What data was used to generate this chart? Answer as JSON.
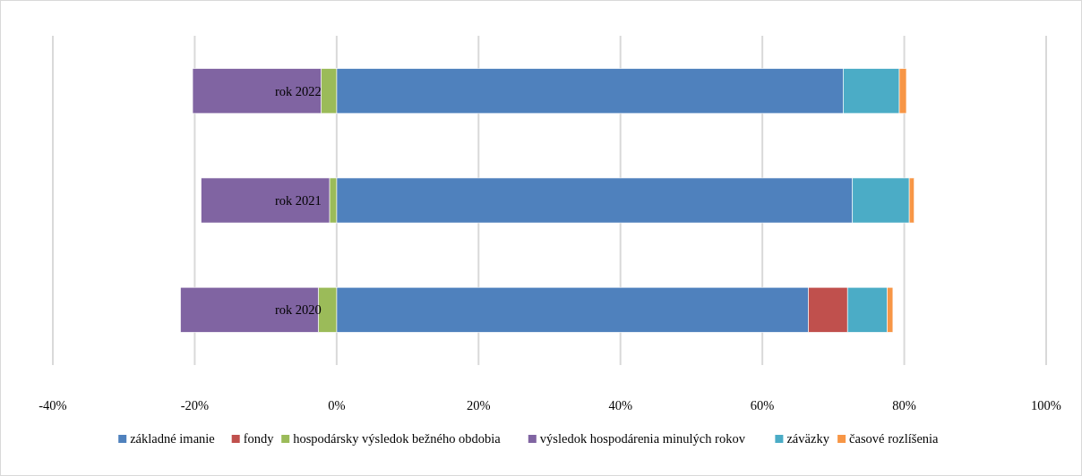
{
  "chart_data": {
    "type": "bar",
    "orientation": "horizontal",
    "stacked": true,
    "categories": [
      "rok 2022",
      "rok 2021",
      "rok 2020"
    ],
    "series": [
      {
        "name": "základné imanie",
        "color": "#4f81bd",
        "values": [
          71.4,
          72.7,
          66.5
        ]
      },
      {
        "name": "fondy",
        "color": "#c0504d",
        "values": [
          0,
          0,
          5.5
        ]
      },
      {
        "name": "hospodársky výsledok bežného obdobia",
        "color": "#9bbb59",
        "values": [
          -2.2,
          -1.0,
          -2.6
        ]
      },
      {
        "name": "výsledok hospodárenia minulých rokov",
        "color": "#8064a2",
        "values": [
          -18.1,
          -18.1,
          -19.4
        ]
      },
      {
        "name": "záväzky",
        "color": "#4bacc6",
        "values": [
          7.9,
          8.0,
          5.6
        ]
      },
      {
        "name": "časové rozlíšenia",
        "color": "#f79646",
        "values": [
          1.0,
          0.7,
          0.8
        ]
      }
    ],
    "xlim": [
      -40,
      100
    ],
    "xticks": [
      {
        "value": -40,
        "label": "-40%"
      },
      {
        "value": -20,
        "label": "-20%"
      },
      {
        "value": 0,
        "label": "0%"
      },
      {
        "value": 20,
        "label": "20%"
      },
      {
        "value": 40,
        "label": "40%"
      },
      {
        "value": 60,
        "label": "60%"
      },
      {
        "value": 80,
        "label": "80%"
      },
      {
        "value": 100,
        "label": "100%"
      }
    ],
    "grid": "x",
    "legend": "bottom"
  }
}
